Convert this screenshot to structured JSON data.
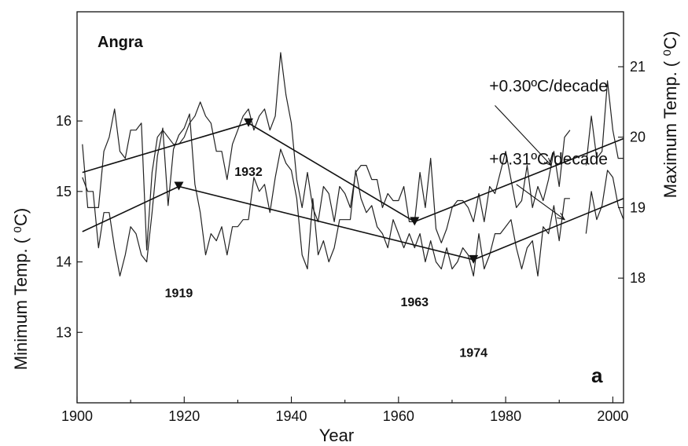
{
  "chart_data": {
    "type": "line",
    "panel_label": "a",
    "station": "Angra",
    "x_axis": {
      "label": "Year",
      "range": [
        1900,
        2002
      ],
      "ticks": [
        1900,
        1920,
        1940,
        1960,
        1980,
        2000
      ]
    },
    "left_axis": {
      "label": "Minimum Temp. ( ⁰C)",
      "range": [
        12.0,
        17.55
      ],
      "ticks": [
        13,
        14,
        15,
        16
      ]
    },
    "right_axis": {
      "label": "Maximum Temp. ( ⁰C)",
      "range": [
        16.23,
        21.78
      ],
      "ticks": [
        18,
        19,
        20,
        21
      ]
    },
    "series": [
      {
        "axis": "right",
        "x": [
          1901,
          1902,
          1903,
          1904,
          1905,
          1906,
          1907,
          1908,
          1909,
          1910,
          1911,
          1912,
          1913,
          1914,
          1915,
          1916,
          1917,
          1918,
          1919,
          1920,
          1921,
          1922,
          1923,
          1924,
          1925,
          1926,
          1927,
          1928,
          1929,
          1930,
          1931,
          1932,
          1933,
          1934,
          1935,
          1936,
          1937,
          1938,
          1939,
          1940,
          1941,
          1942,
          1943,
          1944,
          1945,
          1946,
          1947,
          1948,
          1949,
          1950,
          1951,
          1952,
          1953,
          1954,
          1955,
          1956,
          1957,
          1958,
          1959,
          1960,
          1961,
          1962,
          1963,
          1964,
          1965,
          1966,
          1967,
          1968,
          1969,
          1970,
          1971,
          1972,
          1973,
          1974,
          1975,
          1976,
          1977,
          1978,
          1979,
          1980,
          1981,
          1982,
          1983,
          1984,
          1985,
          1986,
          1987,
          1988,
          1989,
          1990,
          1991,
          1992,
          1993,
          1994,
          1995,
          1996,
          1997,
          1998,
          1999,
          2000,
          2001,
          2002
        ],
        "y": [
          19.9,
          19.0,
          19.0,
          19.0,
          19.8,
          20.0,
          20.4,
          19.8,
          19.7,
          20.1,
          20.1,
          20.2,
          18.4,
          19.5,
          20.0,
          20.1,
          20.0,
          19.9,
          19.9,
          20.0,
          20.2,
          20.3,
          20.5,
          20.3,
          20.2,
          19.8,
          19.8,
          19.4,
          19.9,
          20.1,
          20.3,
          20.4,
          20.1,
          20.3,
          20.4,
          20.1,
          20.3,
          21.2,
          20.6,
          20.2,
          19.4,
          19.0,
          19.5,
          19.0,
          18.8,
          19.3,
          19.2,
          18.8,
          19.3,
          19.2,
          19.0,
          19.5,
          19.6,
          19.6,
          19.4,
          19.4,
          19.0,
          19.2,
          19.1,
          19.1,
          19.3,
          18.8,
          18.8,
          19.5,
          19.0,
          19.7,
          18.7,
          18.5,
          18.7,
          19.0,
          19.1,
          19.1,
          19.0,
          18.8,
          19.2,
          18.8,
          19.3,
          19.2,
          19.5,
          19.8,
          19.4,
          19.0,
          19.1,
          19.6,
          19.0,
          19.3,
          19.1,
          19.4,
          19.8,
          19.3,
          20.0,
          20.1,
          null,
          null,
          19.6,
          20.3,
          19.7,
          19.8,
          20.8,
          20.1,
          19.7,
          19.7
        ]
      },
      {
        "axis": "left",
        "x": [
          1901,
          1902,
          1903,
          1904,
          1905,
          1906,
          1907,
          1908,
          1909,
          1910,
          1911,
          1912,
          1913,
          1914,
          1915,
          1916,
          1917,
          1918,
          1919,
          1920,
          1921,
          1922,
          1923,
          1924,
          1925,
          1926,
          1927,
          1928,
          1929,
          1930,
          1931,
          1932,
          1933,
          1934,
          1935,
          1936,
          1937,
          1938,
          1939,
          1940,
          1941,
          1942,
          1943,
          1944,
          1945,
          1946,
          1947,
          1948,
          1949,
          1950,
          1951,
          1952,
          1953,
          1954,
          1955,
          1956,
          1957,
          1958,
          1959,
          1960,
          1961,
          1962,
          1963,
          1964,
          1965,
          1966,
          1967,
          1968,
          1969,
          1970,
          1971,
          1972,
          1973,
          1974,
          1975,
          1976,
          1977,
          1978,
          1979,
          1980,
          1981,
          1982,
          1983,
          1984,
          1985,
          1986,
          1987,
          1988,
          1989,
          1990,
          1991,
          1992,
          1993,
          1994,
          1995,
          1996,
          1997,
          1998,
          1999,
          2000,
          2001,
          2002
        ],
        "y": [
          15.2,
          15.0,
          15.0,
          14.2,
          14.7,
          14.7,
          14.2,
          13.8,
          14.1,
          14.5,
          14.4,
          14.1,
          14.0,
          14.7,
          15.5,
          15.9,
          14.8,
          15.6,
          15.8,
          15.9,
          16.1,
          15.1,
          14.7,
          14.1,
          14.4,
          14.3,
          14.5,
          14.1,
          14.5,
          14.5,
          14.6,
          14.6,
          15.2,
          15.0,
          15.1,
          14.7,
          15.2,
          15.6,
          15.4,
          15.3,
          14.9,
          14.1,
          13.9,
          14.9,
          14.1,
          14.3,
          14.0,
          14.2,
          14.6,
          14.6,
          14.6,
          15.3,
          14.9,
          14.7,
          14.8,
          14.5,
          14.4,
          14.2,
          14.6,
          14.4,
          14.2,
          14.4,
          14.2,
          14.4,
          14.0,
          14.3,
          14.0,
          13.9,
          14.2,
          13.9,
          14.0,
          14.2,
          14.1,
          13.8,
          14.4,
          13.9,
          14.1,
          14.4,
          14.4,
          14.5,
          14.6,
          14.2,
          13.9,
          14.2,
          14.3,
          13.8,
          14.5,
          14.4,
          14.8,
          14.3,
          14.9,
          14.9,
          null,
          null,
          14.4,
          15.0,
          14.6,
          14.8,
          15.3,
          15.2,
          14.8,
          14.6
        ]
      }
    ],
    "trends": [
      {
        "axis": "right",
        "points": [
          [
            1901,
            19.5
          ],
          [
            1932,
            20.2
          ],
          [
            1963,
            18.8
          ],
          [
            2002,
            19.98
          ]
        ]
      },
      {
        "axis": "left",
        "points": [
          [
            1901,
            14.43
          ],
          [
            1919,
            15.07
          ],
          [
            1974,
            14.03
          ],
          [
            2002,
            14.9
          ]
        ]
      }
    ],
    "breakpoints": [
      {
        "axis": "right",
        "year": 1932,
        "value": 20.2,
        "label": "1932",
        "label_at": [
          1932,
          19.45
        ]
      },
      {
        "axis": "right",
        "year": 1963,
        "value": 18.8,
        "label": "1963",
        "label_at": [
          1963,
          17.6
        ]
      },
      {
        "axis": "left",
        "year": 1919,
        "value": 15.07,
        "label": "1919",
        "label_at": [
          1919,
          13.5
        ]
      },
      {
        "axis": "left",
        "year": 1974,
        "value": 14.03,
        "label": "1974",
        "label_at": [
          1974,
          12.65
        ]
      }
    ],
    "annotations": [
      {
        "axis": "right",
        "text": "+0.30ºC/decade",
        "text_at": [
          1988,
          20.65
        ],
        "arrow_from": [
          1978,
          20.45
        ],
        "arrow_to": [
          1988.5,
          19.6
        ]
      },
      {
        "axis": "left",
        "text": "+0.31ºC/decade",
        "text_at": [
          1988,
          15.38
        ],
        "arrow_from": [
          1982,
          15.1
        ],
        "arrow_to": [
          1991,
          14.6
        ]
      }
    ]
  }
}
